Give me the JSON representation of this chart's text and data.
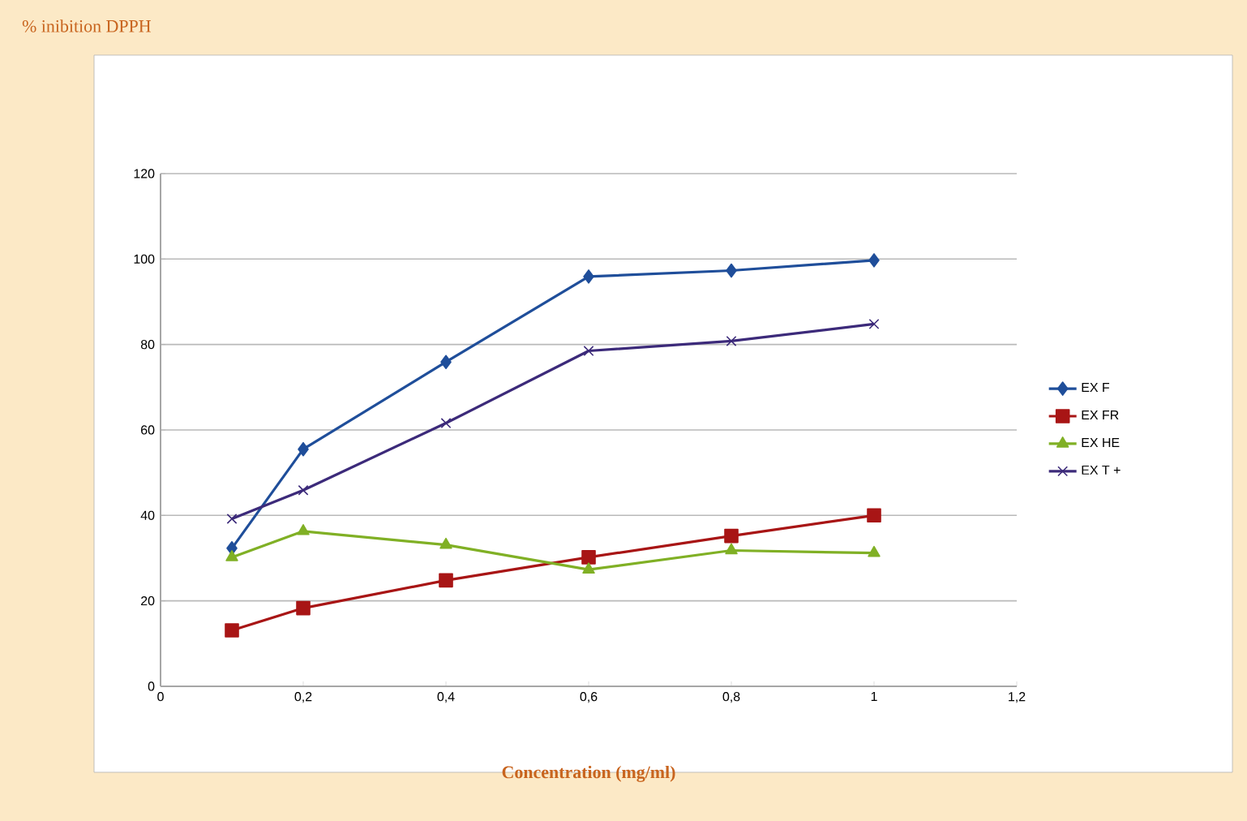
{
  "chart_data": {
    "type": "line",
    "title": "% inibition DPPH",
    "xlabel": "Concentration (mg/ml)",
    "x": [
      0.1,
      0.2,
      0.4,
      0.6,
      0.8,
      1
    ],
    "series": [
      {
        "name": "EX F",
        "color": "#1f4e9a",
        "marker": "diamond",
        "values": [
          32.3,
          55.5,
          75.9,
          95.9,
          97.3,
          99.7
        ]
      },
      {
        "name": "EX FR",
        "color": "#a81515",
        "marker": "square",
        "values": [
          13.1,
          18.3,
          24.8,
          30.2,
          35.2,
          40.0
        ]
      },
      {
        "name": "EX HE",
        "color": "#80b025",
        "marker": "triangle",
        "values": [
          30.2,
          36.3,
          33.1,
          27.3,
          31.8,
          31.2
        ]
      },
      {
        "name": "EX T +",
        "color": "#3c2a7a",
        "marker": "cross",
        "values": [
          39.2,
          45.9,
          61.6,
          78.5,
          80.8,
          84.8
        ]
      }
    ],
    "xlim": [
      0,
      1.2
    ],
    "xticks": [
      0,
      {
        "value": 0.2,
        "label": "0,2"
      },
      {
        "value": 0.4,
        "label": "0,4"
      },
      {
        "value": 0.6,
        "label": "0,6"
      },
      {
        "value": 0.8,
        "label": "0,8"
      },
      1,
      {
        "value": 1.2,
        "label": "1,2"
      }
    ],
    "ylim": [
      0,
      120
    ],
    "yticks": [
      0,
      20,
      40,
      60,
      80,
      100,
      120
    ],
    "grid": "y",
    "legend": "right"
  }
}
